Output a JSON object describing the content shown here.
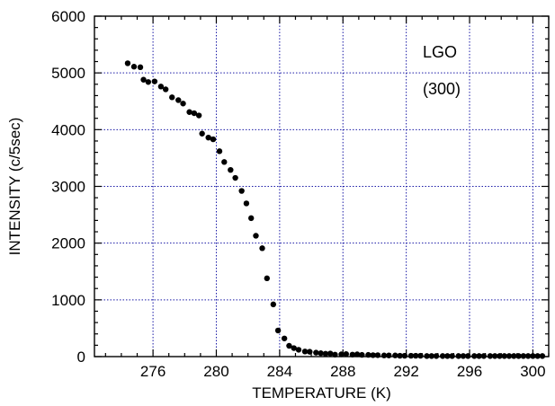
{
  "chart_data": {
    "type": "scatter",
    "title": "",
    "xlabel": "TEMPERATURE (K)",
    "ylabel": "INTENSITY (c/5sec)",
    "xlim": [
      272.3,
      301
    ],
    "ylim": [
      0,
      6000
    ],
    "xticks": [
      276,
      280,
      284,
      288,
      292,
      296,
      300
    ],
    "yticks": [
      0,
      1000,
      2000,
      3000,
      4000,
      5000,
      6000
    ],
    "x_minor_step": 1,
    "y_minor_step": 200,
    "grid": true,
    "annotations": [
      {
        "text": "LGO"
      },
      {
        "text": "(300)"
      }
    ],
    "series": [
      {
        "points": [
          [
            274.4,
            5170
          ],
          [
            274.8,
            5110
          ],
          [
            275.2,
            5100
          ],
          [
            275.4,
            4880
          ],
          [
            275.7,
            4840
          ],
          [
            276.1,
            4850
          ],
          [
            276.5,
            4760
          ],
          [
            276.8,
            4710
          ],
          [
            277.2,
            4570
          ],
          [
            277.6,
            4520
          ],
          [
            277.9,
            4460
          ],
          [
            278.3,
            4310
          ],
          [
            278.6,
            4290
          ],
          [
            278.9,
            4250
          ],
          [
            279.1,
            3930
          ],
          [
            279.5,
            3860
          ],
          [
            279.8,
            3830
          ],
          [
            280.2,
            3620
          ],
          [
            280.5,
            3430
          ],
          [
            280.9,
            3290
          ],
          [
            281.2,
            3150
          ],
          [
            281.6,
            2920
          ],
          [
            281.9,
            2700
          ],
          [
            282.2,
            2440
          ],
          [
            282.5,
            2130
          ],
          [
            282.9,
            1910
          ],
          [
            283.2,
            1380
          ],
          [
            283.6,
            920
          ],
          [
            283.9,
            460
          ],
          [
            284.3,
            320
          ],
          [
            284.6,
            190
          ],
          [
            284.9,
            150
          ],
          [
            285.2,
            120
          ],
          [
            285.6,
            90
          ],
          [
            285.9,
            85
          ],
          [
            286.3,
            70
          ],
          [
            286.6,
            60
          ],
          [
            286.9,
            50
          ],
          [
            287.2,
            55
          ],
          [
            287.5,
            35
          ],
          [
            287.9,
            40
          ],
          [
            288.2,
            45
          ],
          [
            288.6,
            35
          ],
          [
            288.9,
            40
          ],
          [
            289.2,
            30
          ],
          [
            289.6,
            30
          ],
          [
            289.9,
            25
          ],
          [
            290.2,
            25
          ],
          [
            290.6,
            20
          ],
          [
            290.9,
            20
          ],
          [
            291.3,
            20
          ],
          [
            291.6,
            15
          ],
          [
            291.9,
            15
          ],
          [
            292.3,
            15
          ],
          [
            292.6,
            15
          ],
          [
            292.9,
            15
          ],
          [
            293.3,
            10
          ],
          [
            293.6,
            10
          ],
          [
            293.9,
            10
          ],
          [
            294.3,
            10
          ],
          [
            294.6,
            10
          ],
          [
            294.9,
            10
          ],
          [
            295.3,
            10
          ],
          [
            295.6,
            10
          ],
          [
            295.9,
            10
          ],
          [
            296.3,
            10
          ],
          [
            296.6,
            10
          ],
          [
            296.9,
            10
          ],
          [
            297.3,
            10
          ],
          [
            297.6,
            10
          ],
          [
            297.9,
            10
          ],
          [
            298.2,
            10
          ],
          [
            298.5,
            10
          ],
          [
            298.8,
            10
          ],
          [
            299.1,
            10
          ],
          [
            299.4,
            10
          ],
          [
            299.7,
            10
          ],
          [
            300.0,
            10
          ],
          [
            300.3,
            10
          ],
          [
            300.6,
            10
          ]
        ]
      }
    ]
  }
}
